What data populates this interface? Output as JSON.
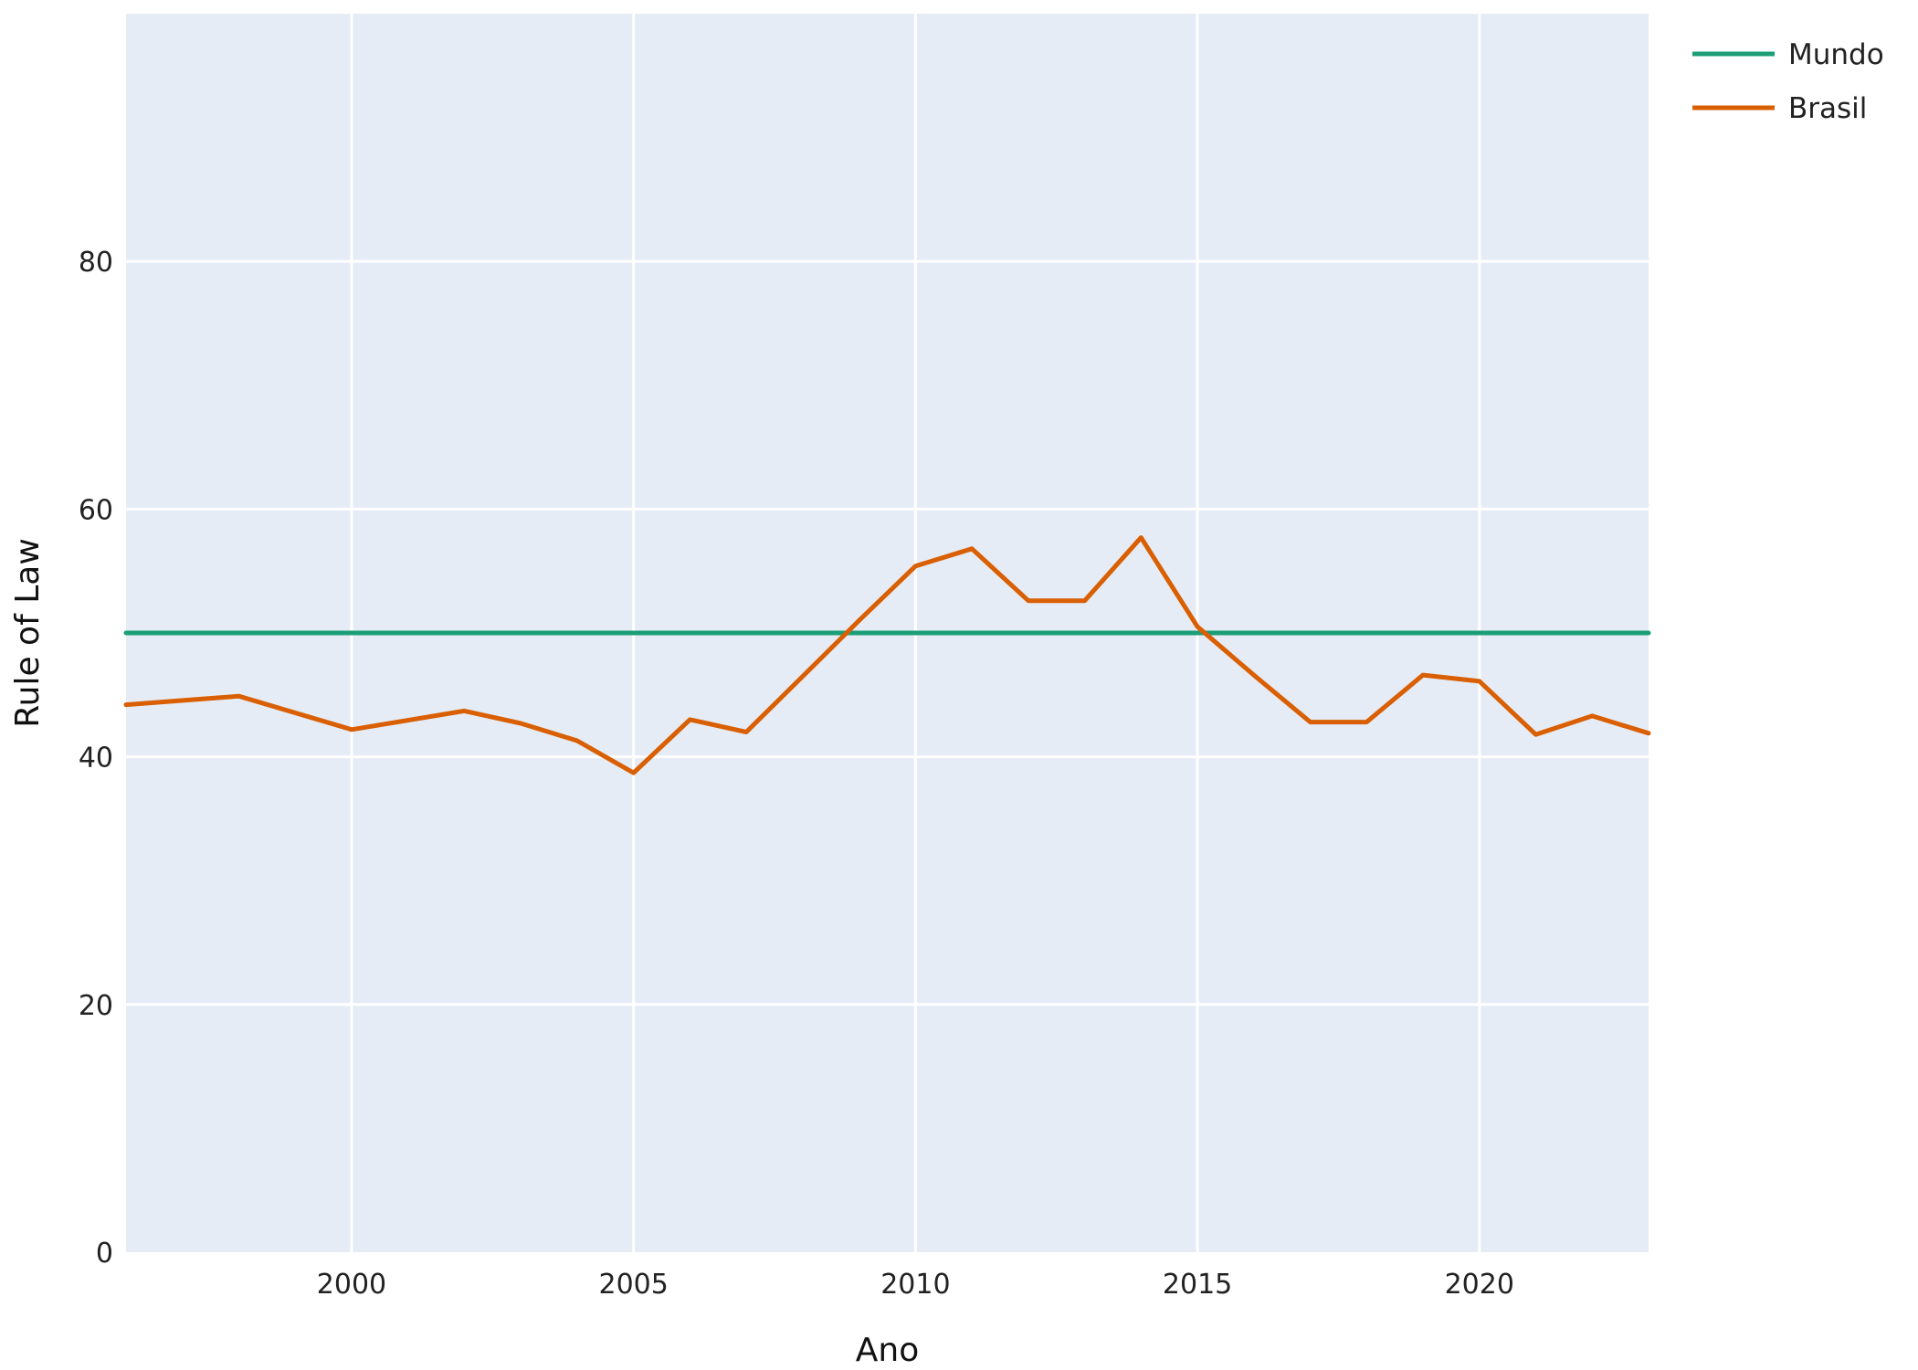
{
  "chart_data": {
    "type": "line",
    "title": "",
    "xlabel": "Ano",
    "ylabel": "Rule of Law",
    "xlim": [
      1996,
      2023
    ],
    "ylim": [
      0,
      100
    ],
    "xticks": [
      2000,
      2005,
      2010,
      2015,
      2020
    ],
    "yticks": [
      0,
      20,
      40,
      60,
      80
    ],
    "grid": true,
    "legend_position": "top-right",
    "plot_background": "#e5ecf6",
    "series": [
      {
        "name": "Mundo",
        "color": "#1b9e77",
        "x": [
          1996,
          2023
        ],
        "y": [
          50,
          50
        ]
      },
      {
        "name": "Brasil",
        "color": "#d95f02",
        "x": [
          1996,
          1998,
          2000,
          2002,
          2003,
          2004,
          2005,
          2006,
          2007,
          2008,
          2009,
          2010,
          2011,
          2012,
          2013,
          2014,
          2015,
          2016,
          2017,
          2018,
          2019,
          2020,
          2021,
          2022,
          2023
        ],
        "y": [
          44.2,
          44.9,
          42.2,
          43.7,
          42.7,
          41.3,
          38.7,
          43.0,
          42.0,
          46.5,
          51.0,
          55.4,
          56.8,
          52.6,
          52.6,
          57.7,
          50.5,
          46.6,
          42.8,
          42.8,
          46.6,
          46.1,
          41.8,
          43.3,
          41.9
        ]
      }
    ]
  }
}
